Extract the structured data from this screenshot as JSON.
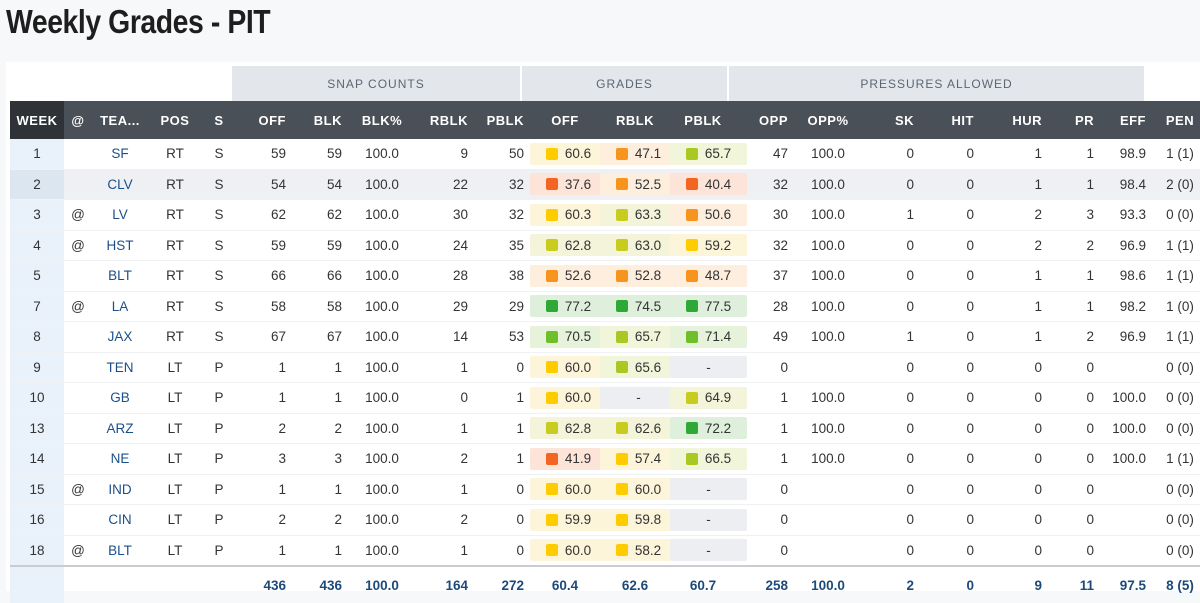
{
  "page_title": "Weekly Grades - PIT",
  "groups": {
    "snap": "SNAP COUNTS",
    "grades": "GRADES",
    "pressures": "PRESSURES ALLOWED"
  },
  "headers": [
    "WEEK",
    "@",
    "TEA...",
    "POS",
    "S",
    "OFF",
    "BLK",
    "BLK%",
    "RBLK",
    "PBLK",
    "OFF",
    "RBLK",
    "PBLK",
    "OPP",
    "OPP%",
    "SK",
    "HIT",
    "HUR",
    "PR",
    "EFF",
    "PEN"
  ],
  "colors": {
    "red": "#f26522",
    "orange": "#f7941d",
    "yellow": "#ffcc00",
    "yellowgreen": "#c8cc1f",
    "lightgreen": "#8dc63f",
    "green": "#2ea836"
  },
  "rows": [
    {
      "week": "1",
      "at": "",
      "team": "SF",
      "pos": "RT",
      "s": "S",
      "off": "59",
      "blk": "59",
      "blkp": "100.0",
      "rblk": "9",
      "pblk": "50",
      "g_off": {
        "v": "60.6",
        "c": "#ffcc00",
        "bg": "#fdf5d9"
      },
      "g_rblk": {
        "v": "47.1",
        "c": "#f7941d",
        "bg": "#fdeede"
      },
      "g_pblk": {
        "v": "65.7",
        "c": "#a9c922",
        "bg": "#f1f5da"
      },
      "opp": "47",
      "oppp": "100.0",
      "sk": "0",
      "hit": "0",
      "hur": "1",
      "pr": "1",
      "eff": "98.9",
      "pen": "1 (1)"
    },
    {
      "week": "2",
      "at": "",
      "team": "CLV",
      "pos": "RT",
      "s": "S",
      "off": "54",
      "blk": "54",
      "blkp": "100.0",
      "rblk": "22",
      "pblk": "32",
      "g_off": {
        "v": "37.6",
        "c": "#f26522",
        "bg": "#fde4d9"
      },
      "g_rblk": {
        "v": "52.5",
        "c": "#f7941d",
        "bg": "#fdeede"
      },
      "g_pblk": {
        "v": "40.4",
        "c": "#f26522",
        "bg": "#fde4d9"
      },
      "opp": "32",
      "oppp": "100.0",
      "sk": "0",
      "hit": "0",
      "hur": "1",
      "pr": "1",
      "eff": "98.4",
      "pen": "2 (0)"
    },
    {
      "week": "3",
      "at": "@",
      "team": "LV",
      "pos": "RT",
      "s": "S",
      "off": "62",
      "blk": "62",
      "blkp": "100.0",
      "rblk": "30",
      "pblk": "32",
      "g_off": {
        "v": "60.3",
        "c": "#ffcc00",
        "bg": "#fdf5d9"
      },
      "g_rblk": {
        "v": "63.3",
        "c": "#c8cc1f",
        "bg": "#f4f4da"
      },
      "g_pblk": {
        "v": "50.6",
        "c": "#f7941d",
        "bg": "#fdeede"
      },
      "opp": "30",
      "oppp": "100.0",
      "sk": "1",
      "hit": "0",
      "hur": "2",
      "pr": "3",
      "eff": "93.3",
      "pen": "0 (0)"
    },
    {
      "week": "4",
      "at": "@",
      "team": "HST",
      "pos": "RT",
      "s": "S",
      "off": "59",
      "blk": "59",
      "blkp": "100.0",
      "rblk": "24",
      "pblk": "35",
      "g_off": {
        "v": "62.8",
        "c": "#c8cc1f",
        "bg": "#f4f4da"
      },
      "g_rblk": {
        "v": "63.0",
        "c": "#c8cc1f",
        "bg": "#f4f4da"
      },
      "g_pblk": {
        "v": "59.2",
        "c": "#ffcc00",
        "bg": "#fdf5d9"
      },
      "opp": "32",
      "oppp": "100.0",
      "sk": "0",
      "hit": "0",
      "hur": "2",
      "pr": "2",
      "eff": "96.9",
      "pen": "1 (1)"
    },
    {
      "week": "5",
      "at": "",
      "team": "BLT",
      "pos": "RT",
      "s": "S",
      "off": "66",
      "blk": "66",
      "blkp": "100.0",
      "rblk": "28",
      "pblk": "38",
      "g_off": {
        "v": "52.6",
        "c": "#f7941d",
        "bg": "#fdeede"
      },
      "g_rblk": {
        "v": "52.8",
        "c": "#f7941d",
        "bg": "#fdeede"
      },
      "g_pblk": {
        "v": "48.7",
        "c": "#f7941d",
        "bg": "#fdeede"
      },
      "opp": "37",
      "oppp": "100.0",
      "sk": "0",
      "hit": "0",
      "hur": "1",
      "pr": "1",
      "eff": "98.6",
      "pen": "1 (1)"
    },
    {
      "week": "7",
      "at": "@",
      "team": "LA",
      "pos": "RT",
      "s": "S",
      "off": "58",
      "blk": "58",
      "blkp": "100.0",
      "rblk": "29",
      "pblk": "29",
      "g_off": {
        "v": "77.2",
        "c": "#2ea836",
        "bg": "#def0dc"
      },
      "g_rblk": {
        "v": "74.5",
        "c": "#2ea836",
        "bg": "#def0dc"
      },
      "g_pblk": {
        "v": "77.5",
        "c": "#2ea836",
        "bg": "#def0dc"
      },
      "opp": "28",
      "oppp": "100.0",
      "sk": "0",
      "hit": "0",
      "hur": "1",
      "pr": "1",
      "eff": "98.2",
      "pen": "1 (0)"
    },
    {
      "week": "8",
      "at": "",
      "team": "JAX",
      "pos": "RT",
      "s": "S",
      "off": "67",
      "blk": "67",
      "blkp": "100.0",
      "rblk": "14",
      "pblk": "53",
      "g_off": {
        "v": "70.5",
        "c": "#6fbf2a",
        "bg": "#e6f2da"
      },
      "g_rblk": {
        "v": "65.7",
        "c": "#a9c922",
        "bg": "#f1f5da"
      },
      "g_pblk": {
        "v": "71.4",
        "c": "#6fbf2a",
        "bg": "#e6f2da"
      },
      "opp": "49",
      "oppp": "100.0",
      "sk": "1",
      "hit": "0",
      "hur": "1",
      "pr": "2",
      "eff": "96.9",
      "pen": "1 (1)"
    },
    {
      "week": "9",
      "at": "",
      "team": "TEN",
      "pos": "LT",
      "s": "P",
      "off": "1",
      "blk": "1",
      "blkp": "100.0",
      "rblk": "1",
      "pblk": "0",
      "g_off": {
        "v": "60.0",
        "c": "#ffcc00",
        "bg": "#fdf5d9"
      },
      "g_rblk": {
        "v": "65.6",
        "c": "#a9c922",
        "bg": "#f1f5da"
      },
      "g_pblk": {
        "v": "-",
        "c": "",
        "bg": ""
      },
      "opp": "0",
      "oppp": "",
      "sk": "0",
      "hit": "0",
      "hur": "0",
      "pr": "0",
      "eff": "",
      "pen": "0 (0)"
    },
    {
      "week": "10",
      "at": "",
      "team": "GB",
      "pos": "LT",
      "s": "P",
      "off": "1",
      "blk": "1",
      "blkp": "100.0",
      "rblk": "0",
      "pblk": "1",
      "g_off": {
        "v": "60.0",
        "c": "#ffcc00",
        "bg": "#fdf5d9"
      },
      "g_rblk": {
        "v": "-",
        "c": "",
        "bg": ""
      },
      "g_pblk": {
        "v": "64.9",
        "c": "#c8cc1f",
        "bg": "#f4f4da"
      },
      "opp": "1",
      "oppp": "100.0",
      "sk": "0",
      "hit": "0",
      "hur": "0",
      "pr": "0",
      "eff": "100.0",
      "pen": "0 (0)"
    },
    {
      "week": "13",
      "at": "",
      "team": "ARZ",
      "pos": "LT",
      "s": "P",
      "off": "2",
      "blk": "2",
      "blkp": "100.0",
      "rblk": "1",
      "pblk": "1",
      "g_off": {
        "v": "62.8",
        "c": "#c8cc1f",
        "bg": "#f4f4da"
      },
      "g_rblk": {
        "v": "62.6",
        "c": "#c8cc1f",
        "bg": "#f4f4da"
      },
      "g_pblk": {
        "v": "72.2",
        "c": "#2ea836",
        "bg": "#def0dc"
      },
      "opp": "1",
      "oppp": "100.0",
      "sk": "0",
      "hit": "0",
      "hur": "0",
      "pr": "0",
      "eff": "100.0",
      "pen": "0 (0)"
    },
    {
      "week": "14",
      "at": "",
      "team": "NE",
      "pos": "LT",
      "s": "P",
      "off": "3",
      "blk": "3",
      "blkp": "100.0",
      "rblk": "2",
      "pblk": "1",
      "g_off": {
        "v": "41.9",
        "c": "#f26522",
        "bg": "#fde4d9"
      },
      "g_rblk": {
        "v": "57.4",
        "c": "#ffcc00",
        "bg": "#fdf5d9"
      },
      "g_pblk": {
        "v": "66.5",
        "c": "#a9c922",
        "bg": "#f1f5da"
      },
      "opp": "1",
      "oppp": "100.0",
      "sk": "0",
      "hit": "0",
      "hur": "0",
      "pr": "0",
      "eff": "100.0",
      "pen": "1 (1)"
    },
    {
      "week": "15",
      "at": "@",
      "team": "IND",
      "pos": "LT",
      "s": "P",
      "off": "1",
      "blk": "1",
      "blkp": "100.0",
      "rblk": "1",
      "pblk": "0",
      "g_off": {
        "v": "60.0",
        "c": "#ffcc00",
        "bg": "#fdf5d9"
      },
      "g_rblk": {
        "v": "60.0",
        "c": "#ffcc00",
        "bg": "#fdf5d9"
      },
      "g_pblk": {
        "v": "-",
        "c": "",
        "bg": ""
      },
      "opp": "0",
      "oppp": "",
      "sk": "0",
      "hit": "0",
      "hur": "0",
      "pr": "0",
      "eff": "",
      "pen": "0 (0)"
    },
    {
      "week": "16",
      "at": "",
      "team": "CIN",
      "pos": "LT",
      "s": "P",
      "off": "2",
      "blk": "2",
      "blkp": "100.0",
      "rblk": "2",
      "pblk": "0",
      "g_off": {
        "v": "59.9",
        "c": "#ffcc00",
        "bg": "#fdf5d9"
      },
      "g_rblk": {
        "v": "59.8",
        "c": "#ffcc00",
        "bg": "#fdf5d9"
      },
      "g_pblk": {
        "v": "-",
        "c": "",
        "bg": ""
      },
      "opp": "0",
      "oppp": "",
      "sk": "0",
      "hit": "0",
      "hur": "0",
      "pr": "0",
      "eff": "",
      "pen": "0 (0)"
    },
    {
      "week": "18",
      "at": "@",
      "team": "BLT",
      "pos": "LT",
      "s": "P",
      "off": "1",
      "blk": "1",
      "blkp": "100.0",
      "rblk": "1",
      "pblk": "0",
      "g_off": {
        "v": "60.0",
        "c": "#ffcc00",
        "bg": "#fdf5d9"
      },
      "g_rblk": {
        "v": "58.2",
        "c": "#ffcc00",
        "bg": "#fdf5d9"
      },
      "g_pblk": {
        "v": "-",
        "c": "",
        "bg": ""
      },
      "opp": "0",
      "oppp": "",
      "sk": "0",
      "hit": "0",
      "hur": "0",
      "pr": "0",
      "eff": "",
      "pen": "0 (0)"
    }
  ],
  "totals": {
    "off": "436",
    "blk": "436",
    "blkp": "100.0",
    "rblk": "164",
    "pblk": "272",
    "g_off": "60.4",
    "g_rblk": "62.6",
    "g_pblk": "60.7",
    "opp": "258",
    "oppp": "100.0",
    "sk": "2",
    "hit": "0",
    "hur": "9",
    "pr": "11",
    "eff": "97.5",
    "pen": "8 (5)"
  }
}
